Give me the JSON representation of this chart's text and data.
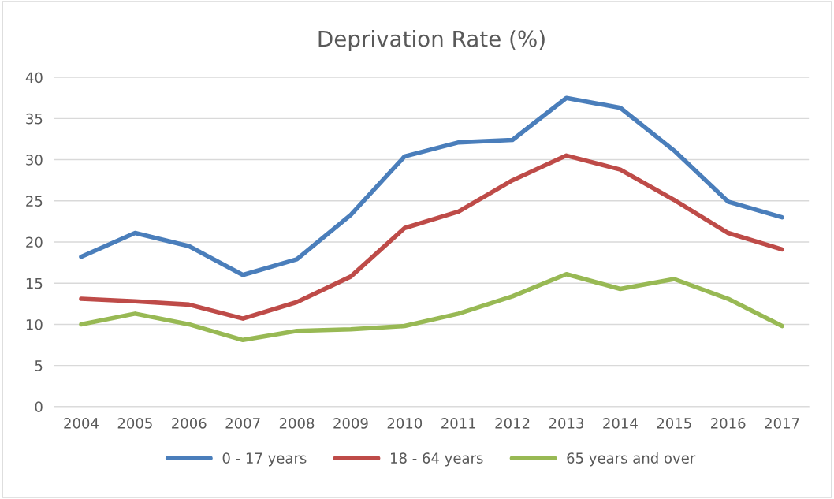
{
  "chart_data": {
    "type": "line",
    "title": "Deprivation Rate (%)",
    "categories": [
      "2004",
      "2005",
      "2006",
      "2007",
      "2008",
      "2009",
      "2010",
      "2011",
      "2012",
      "2013",
      "2014",
      "2015",
      "2016",
      "2017"
    ],
    "series": [
      {
        "name": "0 - 17 years",
        "color": "#4a7ebb",
        "values": [
          18.2,
          21.1,
          19.5,
          16.0,
          17.9,
          23.3,
          30.4,
          32.1,
          32.4,
          37.5,
          36.3,
          31.1,
          24.9,
          23.0
        ]
      },
      {
        "name": "18 - 64 years",
        "color": "#be4b48",
        "values": [
          13.1,
          12.8,
          12.4,
          10.7,
          12.7,
          15.8,
          21.7,
          23.7,
          27.5,
          30.5,
          28.8,
          25.1,
          21.1,
          19.1
        ]
      },
      {
        "name": "65 years and over",
        "color": "#98b954",
        "values": [
          10.0,
          11.3,
          10.0,
          8.1,
          9.2,
          9.4,
          9.8,
          11.3,
          13.4,
          16.1,
          14.3,
          15.5,
          13.1,
          9.8
        ]
      }
    ],
    "ylim": [
      0,
      40
    ],
    "yticks": [
      0,
      5,
      10,
      15,
      20,
      25,
      30,
      35,
      40
    ],
    "grid": "y",
    "legend": "bottom",
    "marker": "none",
    "line_style": "solid"
  }
}
